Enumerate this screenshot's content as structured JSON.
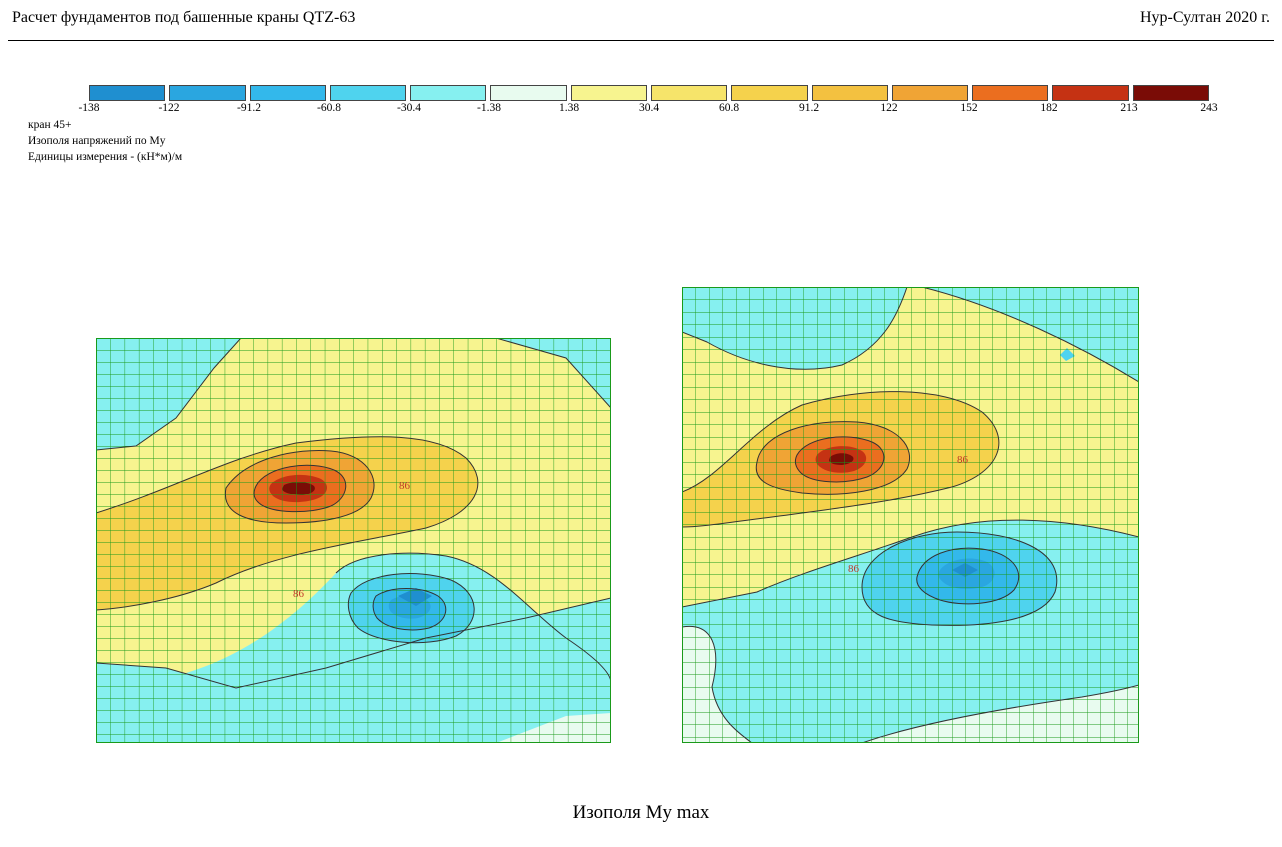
{
  "header": {
    "title": "Расчет фундаментов под башенные краны QTZ-63",
    "place_year": "Нур-Султан 2020 г."
  },
  "legend": {
    "colors": [
      "#1f8fd0",
      "#2aa6e0",
      "#33b8eb",
      "#4fd3ee",
      "#86f0f0",
      "#e8fbef",
      "#f7f48f",
      "#f6e46a",
      "#f5d24c",
      "#f3c140",
      "#f0a435",
      "#eb6e1f",
      "#c53213",
      "#7a0c06"
    ],
    "ticks": [
      "-138",
      "-122",
      "-91.2",
      "-60.8",
      "-30.4",
      "-1.38",
      "1.38",
      "30.4",
      "60.8",
      "91.2",
      "122",
      "152",
      "182",
      "213",
      "243"
    ]
  },
  "info": {
    "line1": "кран 45+",
    "line2": "Изополя напряжений по My",
    "line3": "Единицы измерения - (кН*м)/м"
  },
  "plots": {
    "left_label_a": "86",
    "left_label_b": "86",
    "right_label_a": "86",
    "right_label_b": "86"
  },
  "caption": "Изополя My max"
}
